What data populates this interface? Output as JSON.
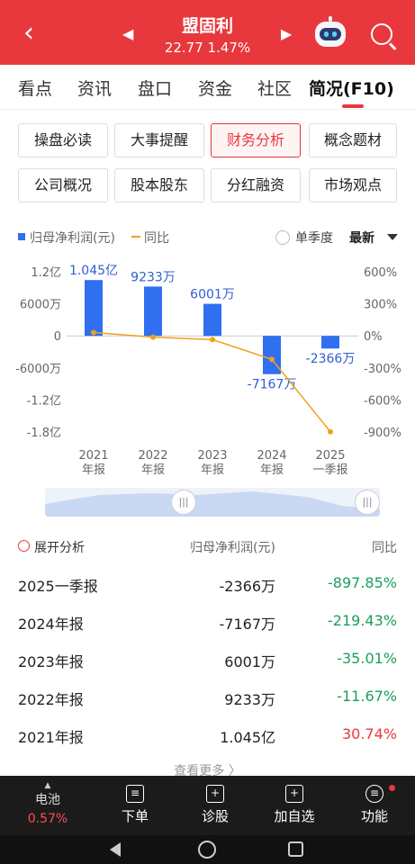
{
  "header": {
    "title": "盟固利",
    "price_line": "22.77  1.47%"
  },
  "tabs": [
    "看点",
    "资讯",
    "盘口",
    "资金",
    "社区",
    "简况(F10)"
  ],
  "buttons": [
    "操盘必读",
    "大事提醒",
    "财务分析",
    "概念题材",
    "公司概况",
    "股本股东",
    "分红融资",
    "市场观点"
  ],
  "legend": {
    "bar_label": "归母净利润(元)",
    "line_label": "同比",
    "single_quarter": "单季度",
    "latest": "最新"
  },
  "chart_data": {
    "type": "bar",
    "categories": [
      "2021 年报",
      "2022 年报",
      "2023 年报",
      "2024 年报",
      "2025 一季报"
    ],
    "category_lines": [
      [
        "2021",
        "年报"
      ],
      [
        "2022",
        "年报"
      ],
      [
        "2023",
        "年报"
      ],
      [
        "2024",
        "年报"
      ],
      [
        "2025",
        "一季报"
      ]
    ],
    "series": [
      {
        "name": "归母净利润(元)",
        "type": "bar",
        "values": [
          104500000,
          92330000,
          60010000,
          -71670000,
          -23660000
        ],
        "labels": [
          "1.045亿",
          "9233万",
          "6001万",
          "-7167万",
          "-2366万"
        ],
        "color": "#2f6ff0"
      },
      {
        "name": "同比",
        "type": "line",
        "values": [
          30.74,
          -11.67,
          -35.01,
          -219.43,
          -897.85
        ],
        "color": "#f0a020"
      }
    ],
    "y_left_ticks": [
      "1.2亿",
      "6000万",
      "0",
      "-6000万",
      "-1.2亿",
      "-1.8亿"
    ],
    "y_left_range": [
      -180000000,
      120000000
    ],
    "y_right_ticks": [
      "600%",
      "300%",
      "0%",
      "-300%",
      "-600%",
      "-900%"
    ],
    "y_right_range": [
      -900,
      600
    ]
  },
  "table": {
    "title": "展开分析",
    "col2": "归母净利润(元)",
    "col3": "同比",
    "rows": [
      {
        "period": "2025一季报",
        "profit": "-2366万",
        "yoy": "-897.85%",
        "sign": "neg"
      },
      {
        "period": "2024年报",
        "profit": "-7167万",
        "yoy": "-219.43%",
        "sign": "neg"
      },
      {
        "period": "2023年报",
        "profit": "6001万",
        "yoy": "-35.01%",
        "sign": "neg"
      },
      {
        "period": "2022年报",
        "profit": "9233万",
        "yoy": "-11.67%",
        "sign": "neg"
      },
      {
        "period": "2021年报",
        "profit": "1.045亿",
        "yoy": "30.74%",
        "sign": "pos"
      }
    ],
    "more": "查看更多 〉"
  },
  "bottom_nav": {
    "battery_label": "电池",
    "battery_value": "0.57%",
    "items": [
      "下单",
      "诊股",
      "加自选",
      "功能"
    ]
  }
}
